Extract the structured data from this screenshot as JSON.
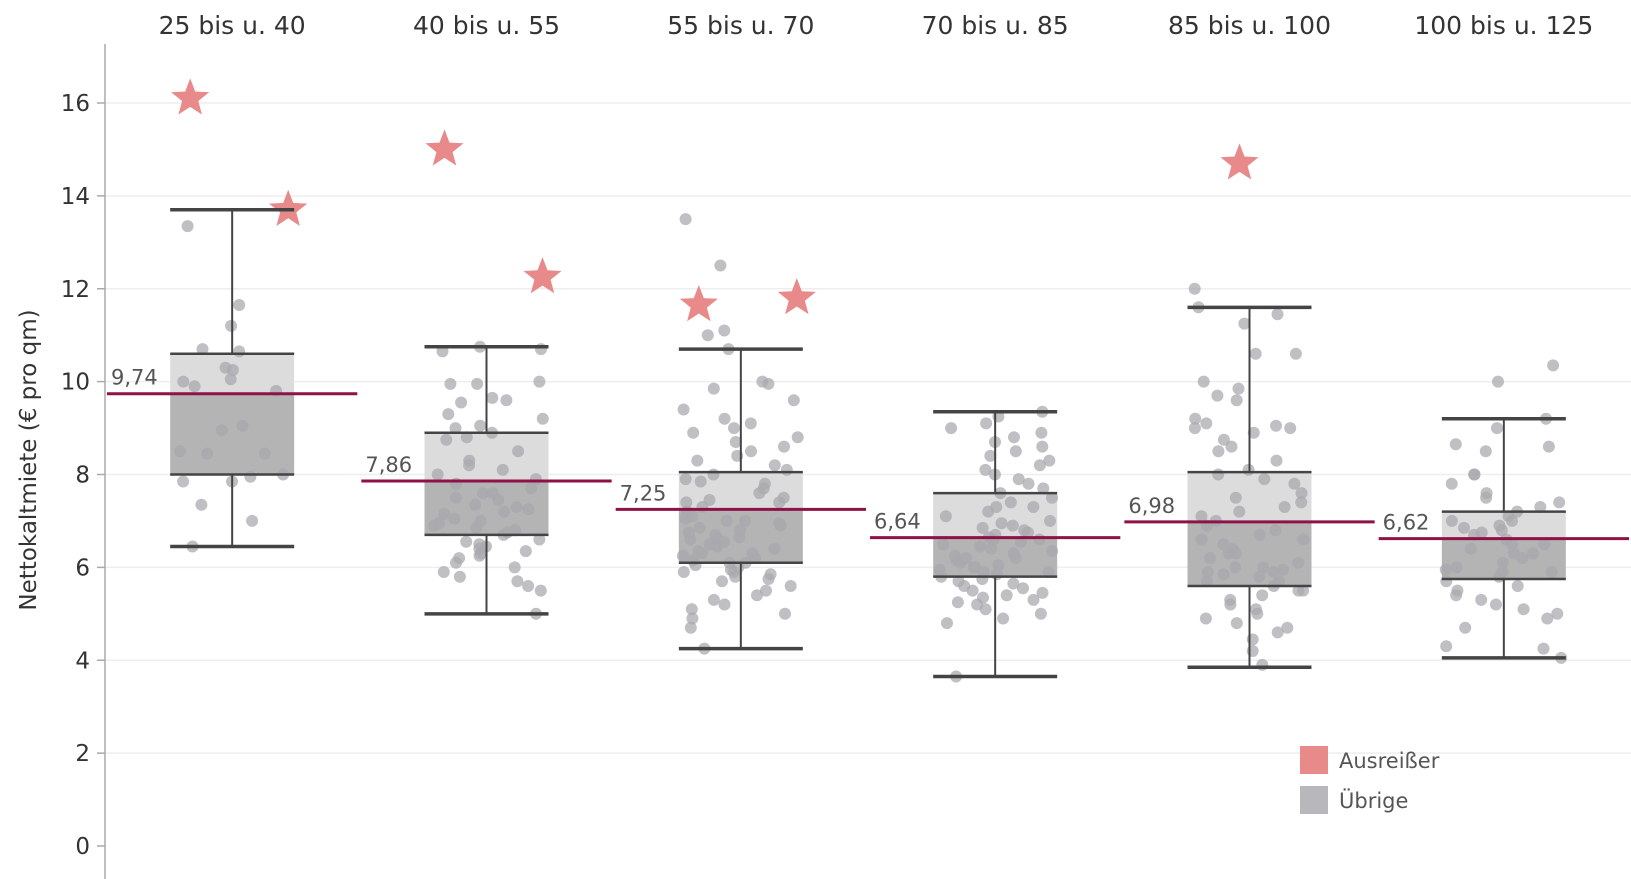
{
  "chart_data": {
    "type": "box",
    "title": "",
    "ylabel": "Nettokaltmiete (€ pro qm)",
    "xlabel": "",
    "ylim": [
      0,
      17
    ],
    "yticks": [
      "0",
      "2",
      "4",
      "6",
      "8",
      "10",
      "12",
      "14",
      "16"
    ],
    "grid": true,
    "legend_position": "bottom-right",
    "colors": {
      "outlier": "#e88a8a",
      "points": "#a8a8ad",
      "box_upper": "#dcdcdc",
      "box_lower": "#b4b4b4",
      "median_line": "#8e1247",
      "whisker": "#444444",
      "grid": "#eeeeee"
    },
    "legend": [
      {
        "name": "Ausreißer",
        "color": "#e88a8a",
        "icon": "star-icon"
      },
      {
        "name": "Übrige",
        "color": "#b8b8bc",
        "icon": "dot-icon"
      }
    ],
    "categories": [
      "25 bis u. 40",
      "40 bis u. 55",
      "55 bis u. 70",
      "70 bis u. 85",
      "85 bis u. 100",
      "100 bis u. 125"
    ],
    "boxes": [
      {
        "category": "25 bis u. 40",
        "min": 6.45,
        "q1": 8.0,
        "median": 9.74,
        "q3": 10.6,
        "max": 13.7,
        "median_label": "9,74"
      },
      {
        "category": "40 bis u. 55",
        "min": 5.0,
        "q1": 6.7,
        "median": 7.86,
        "q3": 8.9,
        "max": 10.75,
        "median_label": "7,86"
      },
      {
        "category": "55 bis u. 70",
        "min": 4.25,
        "q1": 6.1,
        "median": 7.25,
        "q3": 8.05,
        "max": 10.7,
        "median_label": "7,25"
      },
      {
        "category": "70 bis u. 85",
        "min": 3.65,
        "q1": 5.8,
        "median": 6.64,
        "q3": 7.6,
        "max": 9.35,
        "median_label": "6,64"
      },
      {
        "category": "85 bis u. 100",
        "min": 3.85,
        "q1": 5.6,
        "median": 6.98,
        "q3": 8.05,
        "max": 11.6,
        "median_label": "6,98"
      },
      {
        "category": "100 bis u. 125",
        "min": 4.05,
        "q1": 5.75,
        "median": 6.62,
        "q3": 7.2,
        "max": 9.2,
        "median_label": "6,62"
      }
    ],
    "outliers": [
      {
        "category": "25 bis u. 40",
        "values": [
          16.1,
          13.7
        ]
      },
      {
        "category": "40 bis u. 55",
        "values": [
          15.0,
          12.25
        ]
      },
      {
        "category": "55 bis u. 70",
        "values": [
          11.65,
          11.8
        ]
      },
      {
        "category": "70 bis u. 85",
        "values": []
      },
      {
        "category": "85 bis u. 100",
        "values": [
          14.7
        ]
      },
      {
        "category": "100 bis u. 125",
        "values": []
      }
    ],
    "points": [
      {
        "category": "25 bis u. 40",
        "values": [
          11.2,
          11.65,
          13.35,
          10.7,
          10.3,
          10.25,
          10.0,
          9.8,
          9.05,
          8.95,
          8.45,
          8.45,
          7.95,
          7.85,
          7.85,
          7.35,
          7.0,
          6.45,
          10.65,
          10.05,
          9.9,
          8.5,
          8.0
        ]
      },
      {
        "category": "40 bis u. 55",
        "values": [
          10.7,
          10.65,
          10.75,
          10.0,
          9.95,
          9.95,
          9.65,
          9.6,
          9.55,
          9.3,
          9.2,
          9.05,
          9.0,
          8.9,
          8.8,
          8.75,
          8.5,
          8.3,
          8.2,
          8.0,
          7.9,
          7.8,
          7.7,
          7.6,
          7.5,
          7.45,
          7.35,
          7.3,
          7.2,
          7.15,
          7.05,
          7.0,
          6.95,
          6.9,
          6.85,
          6.75,
          6.7,
          6.6,
          6.55,
          6.5,
          6.45,
          6.4,
          6.35,
          6.3,
          6.25,
          6.2,
          6.1,
          6.0,
          5.9,
          5.8,
          5.7,
          5.6,
          5.5,
          5.0,
          7.25,
          6.8,
          8.1,
          7.6
        ]
      },
      {
        "category": "55 bis u. 70",
        "values": [
          13.5,
          12.5,
          11.1,
          11.0,
          10.7,
          10.0,
          9.95,
          9.85,
          9.6,
          9.4,
          9.2,
          9.1,
          9.0,
          8.9,
          8.8,
          8.7,
          8.6,
          8.5,
          8.4,
          8.3,
          8.2,
          8.1,
          8.0,
          7.9,
          7.85,
          7.8,
          7.7,
          7.6,
          7.5,
          7.45,
          7.4,
          7.3,
          7.2,
          7.1,
          7.05,
          7.0,
          6.95,
          6.9,
          6.85,
          6.8,
          6.75,
          6.7,
          6.65,
          6.6,
          6.55,
          6.5,
          6.45,
          6.4,
          6.35,
          6.3,
          6.25,
          6.2,
          6.15,
          6.1,
          6.05,
          6.0,
          5.95,
          5.9,
          5.85,
          5.8,
          5.75,
          5.7,
          5.6,
          5.5,
          5.4,
          5.3,
          5.2,
          5.1,
          5.0,
          4.9,
          4.7,
          4.25,
          6.6,
          7.4,
          6.3,
          5.9,
          7.0,
          6.1
        ]
      },
      {
        "category": "70 bis u. 85",
        "values": [
          9.35,
          9.25,
          9.1,
          9.0,
          8.9,
          8.8,
          8.7,
          8.6,
          8.5,
          8.4,
          8.3,
          8.2,
          8.1,
          8.0,
          7.9,
          7.8,
          7.7,
          7.6,
          7.5,
          7.4,
          7.3,
          7.2,
          7.1,
          7.0,
          6.95,
          6.9,
          6.85,
          6.8,
          6.75,
          6.7,
          6.65,
          6.6,
          6.55,
          6.5,
          6.45,
          6.4,
          6.35,
          6.3,
          6.25,
          6.2,
          6.15,
          6.1,
          6.05,
          6.0,
          5.95,
          5.9,
          5.85,
          5.8,
          5.75,
          5.7,
          5.65,
          5.6,
          5.55,
          5.5,
          5.45,
          5.4,
          5.35,
          5.3,
          5.25,
          5.2,
          5.1,
          5.0,
          4.9,
          4.8,
          3.65,
          6.6,
          6.2,
          5.9,
          7.3,
          6.0
        ]
      },
      {
        "category": "85 bis u. 100",
        "values": [
          12.0,
          11.6,
          11.45,
          11.25,
          10.6,
          10.6,
          10.0,
          9.85,
          9.7,
          9.6,
          9.2,
          9.1,
          9.05,
          9.0,
          9.0,
          8.9,
          8.75,
          8.6,
          8.5,
          8.3,
          8.1,
          8.0,
          7.9,
          7.8,
          7.6,
          7.5,
          7.4,
          7.3,
          7.2,
          7.1,
          7.0,
          6.9,
          6.8,
          6.7,
          6.6,
          6.5,
          6.4,
          6.3,
          6.2,
          6.1,
          6.0,
          5.95,
          5.9,
          5.85,
          5.8,
          5.7,
          5.6,
          5.5,
          5.4,
          5.3,
          5.2,
          5.1,
          5.0,
          4.9,
          4.8,
          4.7,
          4.6,
          4.45,
          4.2,
          3.9,
          6.3,
          6.6,
          5.9,
          6.0,
          5.5,
          5.7
        ]
      },
      {
        "category": "100 bis u. 125",
        "values": [
          10.35,
          10.0,
          9.2,
          9.0,
          8.65,
          8.6,
          8.5,
          8.0,
          8.0,
          7.8,
          7.6,
          7.5,
          7.4,
          7.3,
          7.2,
          7.1,
          7.0,
          6.9,
          6.85,
          6.8,
          6.75,
          6.7,
          6.6,
          6.5,
          6.4,
          6.3,
          6.2,
          6.1,
          6.0,
          5.95,
          5.9,
          5.8,
          5.7,
          5.6,
          5.5,
          5.4,
          5.3,
          5.2,
          5.1,
          5.0,
          4.9,
          4.7,
          4.3,
          4.25,
          4.05,
          6.5,
          6.3,
          7.0,
          5.9
        ]
      }
    ]
  }
}
